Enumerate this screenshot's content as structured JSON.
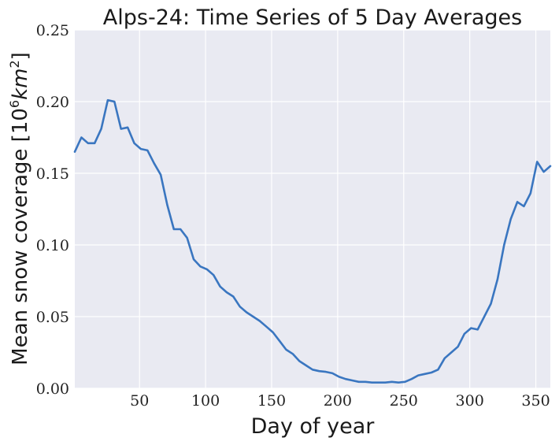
{
  "chart_data": {
    "type": "line",
    "title": "Alps-24: Time Series of 5 Day Averages",
    "xlabel": "Day of year",
    "ylabel_text": "Mean snow coverage ",
    "ylabel_unit_open": "[10",
    "ylabel_unit_exp": "6",
    "ylabel_unit_mid": "km",
    "ylabel_unit_exp2": "2",
    "ylabel_unit_close": "]",
    "xlim": [
      1,
      361
    ],
    "ylim": [
      0,
      0.25
    ],
    "xticks": [
      50,
      100,
      150,
      200,
      250,
      300,
      350
    ],
    "yticks": [
      0.0,
      0.05,
      0.1,
      0.15,
      0.2,
      0.25
    ],
    "ytick_labels": [
      "0.00",
      "0.05",
      "0.10",
      "0.15",
      "0.20",
      "0.25"
    ],
    "grid": true,
    "line_color": "#3a76c0",
    "background_color": "#e9eaf2",
    "grid_color": "#ffffff",
    "x": [
      1,
      6,
      11,
      16,
      21,
      26,
      31,
      36,
      41,
      46,
      51,
      56,
      61,
      66,
      71,
      76,
      81,
      86,
      91,
      96,
      101,
      106,
      111,
      116,
      121,
      126,
      131,
      136,
      141,
      146,
      151,
      156,
      161,
      166,
      171,
      176,
      181,
      186,
      191,
      196,
      201,
      206,
      211,
      216,
      221,
      226,
      231,
      236,
      241,
      246,
      251,
      256,
      261,
      266,
      271,
      276,
      281,
      286,
      291,
      296,
      301,
      306,
      311,
      316,
      321,
      326,
      331,
      336,
      341,
      346,
      351,
      356,
      361
    ],
    "y": [
      0.165,
      0.175,
      0.171,
      0.171,
      0.181,
      0.201,
      0.2,
      0.181,
      0.182,
      0.171,
      0.167,
      0.166,
      0.157,
      0.149,
      0.128,
      0.111,
      0.111,
      0.105,
      0.09,
      0.085,
      0.083,
      0.079,
      0.071,
      0.067,
      0.064,
      0.057,
      0.053,
      0.05,
      0.047,
      0.043,
      0.039,
      0.033,
      0.027,
      0.024,
      0.019,
      0.016,
      0.013,
      0.012,
      0.0115,
      0.0105,
      0.008,
      0.0065,
      0.0055,
      0.0045,
      0.0045,
      0.004,
      0.004,
      0.004,
      0.0045,
      0.004,
      0.0045,
      0.0065,
      0.009,
      0.01,
      0.011,
      0.013,
      0.021,
      0.025,
      0.029,
      0.038,
      0.042,
      0.041,
      0.05,
      0.059,
      0.076,
      0.1,
      0.118,
      0.13,
      0.127,
      0.136,
      0.158,
      0.151,
      0.155
    ]
  }
}
